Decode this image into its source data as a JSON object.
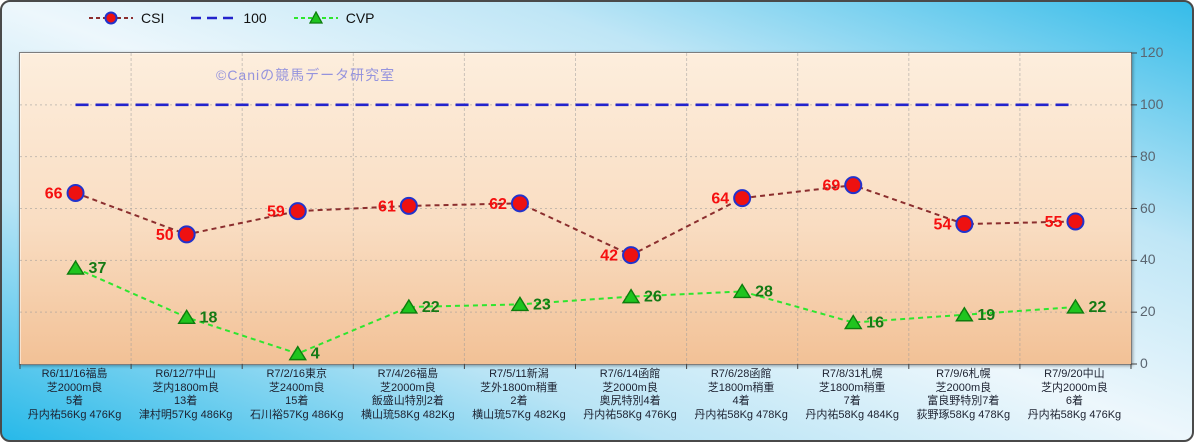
{
  "legend": {
    "items": [
      {
        "label": "CSI"
      },
      {
        "label": "100"
      },
      {
        "label": "CVP"
      }
    ]
  },
  "watermark": "©Caniの競馬データ研究室",
  "colors": {
    "csi_line": "#8b2e2e",
    "csi_marker_fill": "#ee1111",
    "csi_marker_stroke": "#2233cc",
    "csi_label": "#f50f0f",
    "ref_line": "#2323cc",
    "cvp_line": "#2ee62e",
    "cvp_marker_fill": "#1fc41f",
    "cvp_marker_stroke": "#0d7d0d",
    "cvp_label": "#157a15",
    "grid_line": "#9a9a9a",
    "tick_color": "#444444",
    "y_label_color": "#5a6570"
  },
  "chart_data": {
    "type": "line",
    "title": "",
    "categories": [
      [
        "R6/11/16福島",
        "芝2000m良",
        "5着",
        "丹内祐56Kg 476Kg"
      ],
      [
        "R6/12/7中山",
        "芝内1800m良",
        "13着",
        "津村明57Kg 486Kg"
      ],
      [
        "R7/2/16東京",
        "芝2400m良",
        "15着",
        "石川裕57Kg 486Kg"
      ],
      [
        "R7/4/26福島",
        "芝2000m良",
        "飯盛山特別2着",
        "横山琉58Kg 482Kg"
      ],
      [
        "R7/5/11新潟",
        "芝外1800m稍重",
        "2着",
        "横山琉57Kg 482Kg"
      ],
      [
        "R7/6/14函館",
        "芝2000m良",
        "奥尻特別4着",
        "丹内祐58Kg 476Kg"
      ],
      [
        "R7/6/28函館",
        "芝1800m稍重",
        "4着",
        "丹内祐58Kg 478Kg"
      ],
      [
        "R7/8/31札幌",
        "芝1800m稍重",
        "7着",
        "丹内祐58Kg 484Kg"
      ],
      [
        "R7/9/6札幌",
        "芝2000m良",
        "富良野特別7着",
        "荻野琢58Kg 478Kg"
      ],
      [
        "R7/9/20中山",
        "芝内2000m良",
        "6着",
        "丹内祐58Kg 476Kg"
      ]
    ],
    "series": [
      {
        "name": "CSI",
        "values": [
          66,
          50,
          59,
          61,
          62,
          42,
          64,
          69,
          54,
          55
        ]
      },
      {
        "name": "100",
        "values": [
          100,
          100,
          100,
          100,
          100,
          100,
          100,
          100,
          100,
          100
        ]
      },
      {
        "name": "CVP",
        "values": [
          37,
          18,
          4,
          22,
          23,
          26,
          28,
          16,
          19,
          22
        ]
      }
    ],
    "ylim": [
      0,
      120
    ],
    "yticks": [
      0,
      20,
      40,
      60,
      80,
      100,
      120
    ],
    "grid": true,
    "legend_position": "top"
  }
}
